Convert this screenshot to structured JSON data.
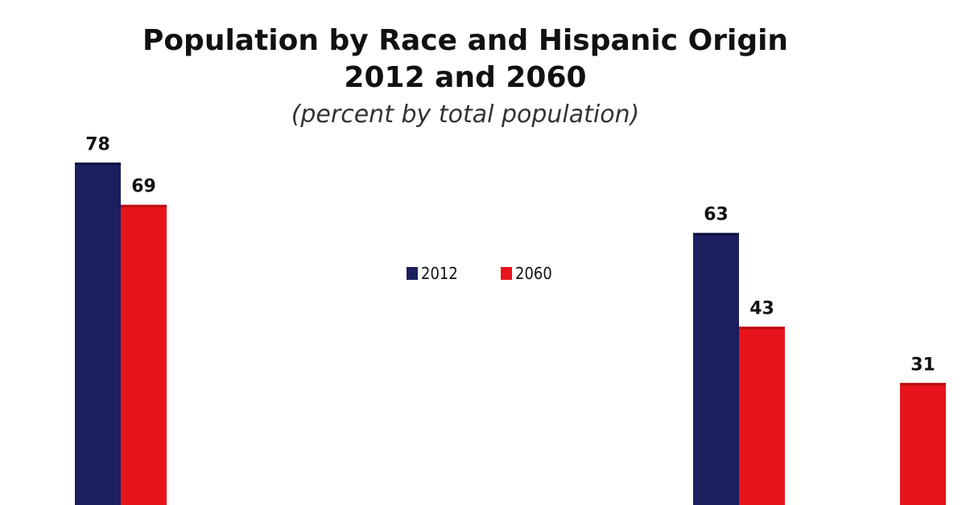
{
  "chart_data": {
    "type": "bar",
    "title_lines": [
      "Population by Race and Hispanic Origin",
      "2012 and 2060"
    ],
    "subtitle": "(percent by total population)",
    "xlabel": "",
    "ylabel": "",
    "categories": [
      "",
      "",
      "",
      ""
    ],
    "series": [
      {
        "name": "2012",
        "color": "#1b1f5e",
        "values": [
          78,
          null,
          63,
          null
        ]
      },
      {
        "name": "2060",
        "color": "#e8141b",
        "values": [
          69,
          null,
          43,
          31
        ]
      }
    ],
    "ylim": [
      0,
      100
    ],
    "grid": false,
    "legend_position": "top-center"
  }
}
